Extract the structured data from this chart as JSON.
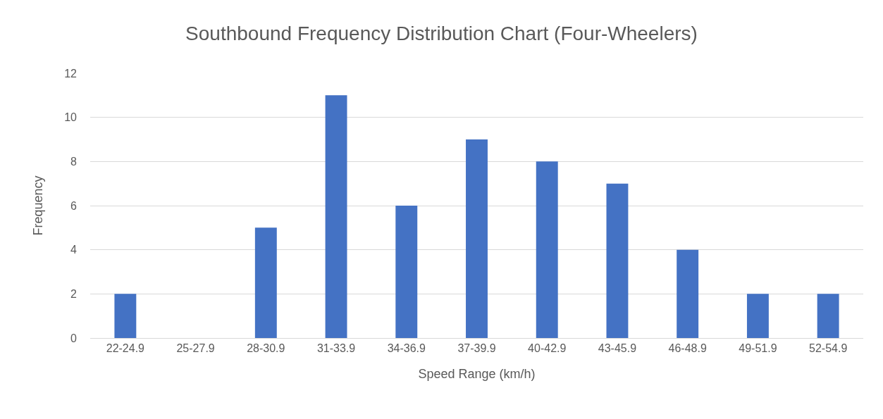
{
  "chart_data": {
    "type": "bar",
    "title": "Southbound Frequency Distribution Chart (Four-Wheelers)",
    "xlabel": "Speed Range (km/h)",
    "ylabel": "Frequency",
    "categories": [
      "22-24.9",
      "25-27.9",
      "28-30.9",
      "31-33.9",
      "34-36.9",
      "37-39.9",
      "40-42.9",
      "43-45.9",
      "46-48.9",
      "49-51.9",
      "52-54.9"
    ],
    "values": [
      2,
      0,
      5,
      11,
      6,
      9,
      8,
      7,
      4,
      2,
      2
    ],
    "color": "#4472c4",
    "ylim": [
      0,
      12
    ],
    "yticks": [
      0,
      2,
      4,
      6,
      8,
      10,
      12
    ],
    "grid": "y"
  }
}
